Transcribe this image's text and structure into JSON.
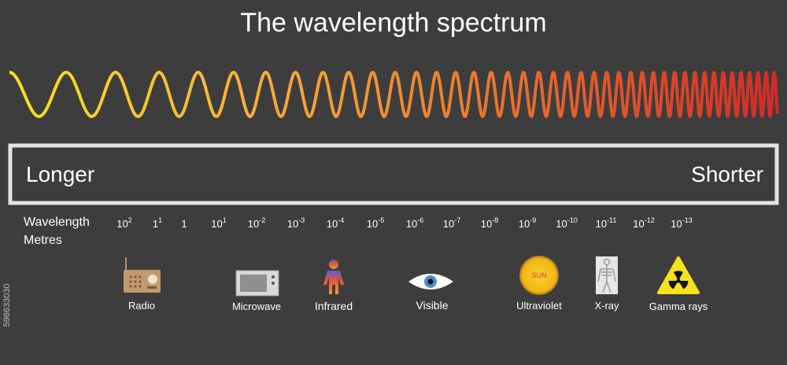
{
  "title": "The wavelength spectrum",
  "range": {
    "left": "Longer",
    "right": "Shorter"
  },
  "axis_label": {
    "line1": "Wavelength",
    "line2": "Metres"
  },
  "scale": [
    {
      "base": "10",
      "exp": "2"
    },
    {
      "base": "1",
      "exp": "1"
    },
    {
      "base": "1"
    },
    {
      "base": "10",
      "exp": "1"
    },
    {
      "base": "10",
      "exp": "-2"
    },
    {
      "base": "10",
      "exp": "-3"
    },
    {
      "base": "10",
      "exp": "-4"
    },
    {
      "base": "10",
      "exp": "-5"
    },
    {
      "base": "10",
      "exp": "-6"
    },
    {
      "base": "10",
      "exp": "-7"
    },
    {
      "base": "10",
      "exp": "-8"
    },
    {
      "base": "10",
      "exp": "-9"
    },
    {
      "base": "10",
      "exp": "-10"
    },
    {
      "base": "10",
      "exp": "-11"
    },
    {
      "base": "10",
      "exp": "-12"
    },
    {
      "base": "10",
      "exp": "-13"
    }
  ],
  "items": [
    "Radio",
    "Microwave",
    "Infrared",
    "Visible",
    "Ultraviolet",
    "X-ray",
    "Gamma rays"
  ],
  "sun_label": "SUN",
  "image_id": "598633030"
}
